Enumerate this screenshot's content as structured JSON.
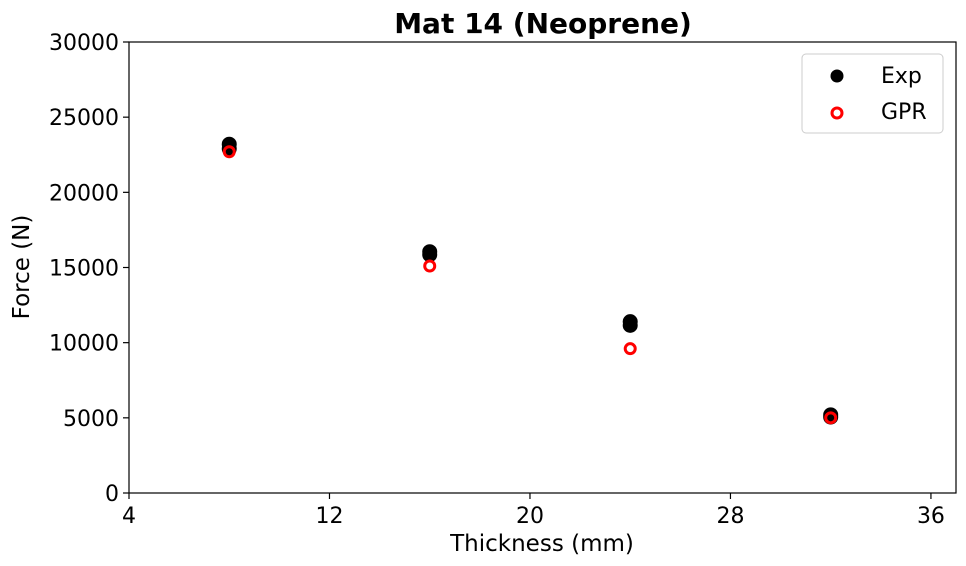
{
  "chart_data": {
    "type": "scatter",
    "title": "Mat 14 (Neoprene)",
    "xlabel": "Thickness (mm)",
    "ylabel": "Force (N)",
    "xlim": [
      4,
      37
    ],
    "ylim": [
      0,
      30000
    ],
    "xticks": [
      4,
      12,
      20,
      28,
      36
    ],
    "yticks": [
      0,
      5000,
      10000,
      15000,
      20000,
      25000,
      30000
    ],
    "grid": false,
    "legend_position": "top-right",
    "series": [
      {
        "name": "Exp",
        "marker": "filled-circle",
        "color": "#000000",
        "points": [
          {
            "x": 8,
            "y": 23200
          },
          {
            "x": 8,
            "y": 22900
          },
          {
            "x": 16,
            "y": 16050
          },
          {
            "x": 16,
            "y": 15850
          },
          {
            "x": 24,
            "y": 11400
          },
          {
            "x": 24,
            "y": 11150
          },
          {
            "x": 32,
            "y": 5200
          },
          {
            "x": 32,
            "y": 5050
          }
        ]
      },
      {
        "name": "GPR",
        "marker": "open-circle",
        "color": "#ff0000",
        "points": [
          {
            "x": 8,
            "y": 22700
          },
          {
            "x": 16,
            "y": 15100
          },
          {
            "x": 24,
            "y": 9600
          },
          {
            "x": 32,
            "y": 5000
          }
        ]
      }
    ]
  }
}
